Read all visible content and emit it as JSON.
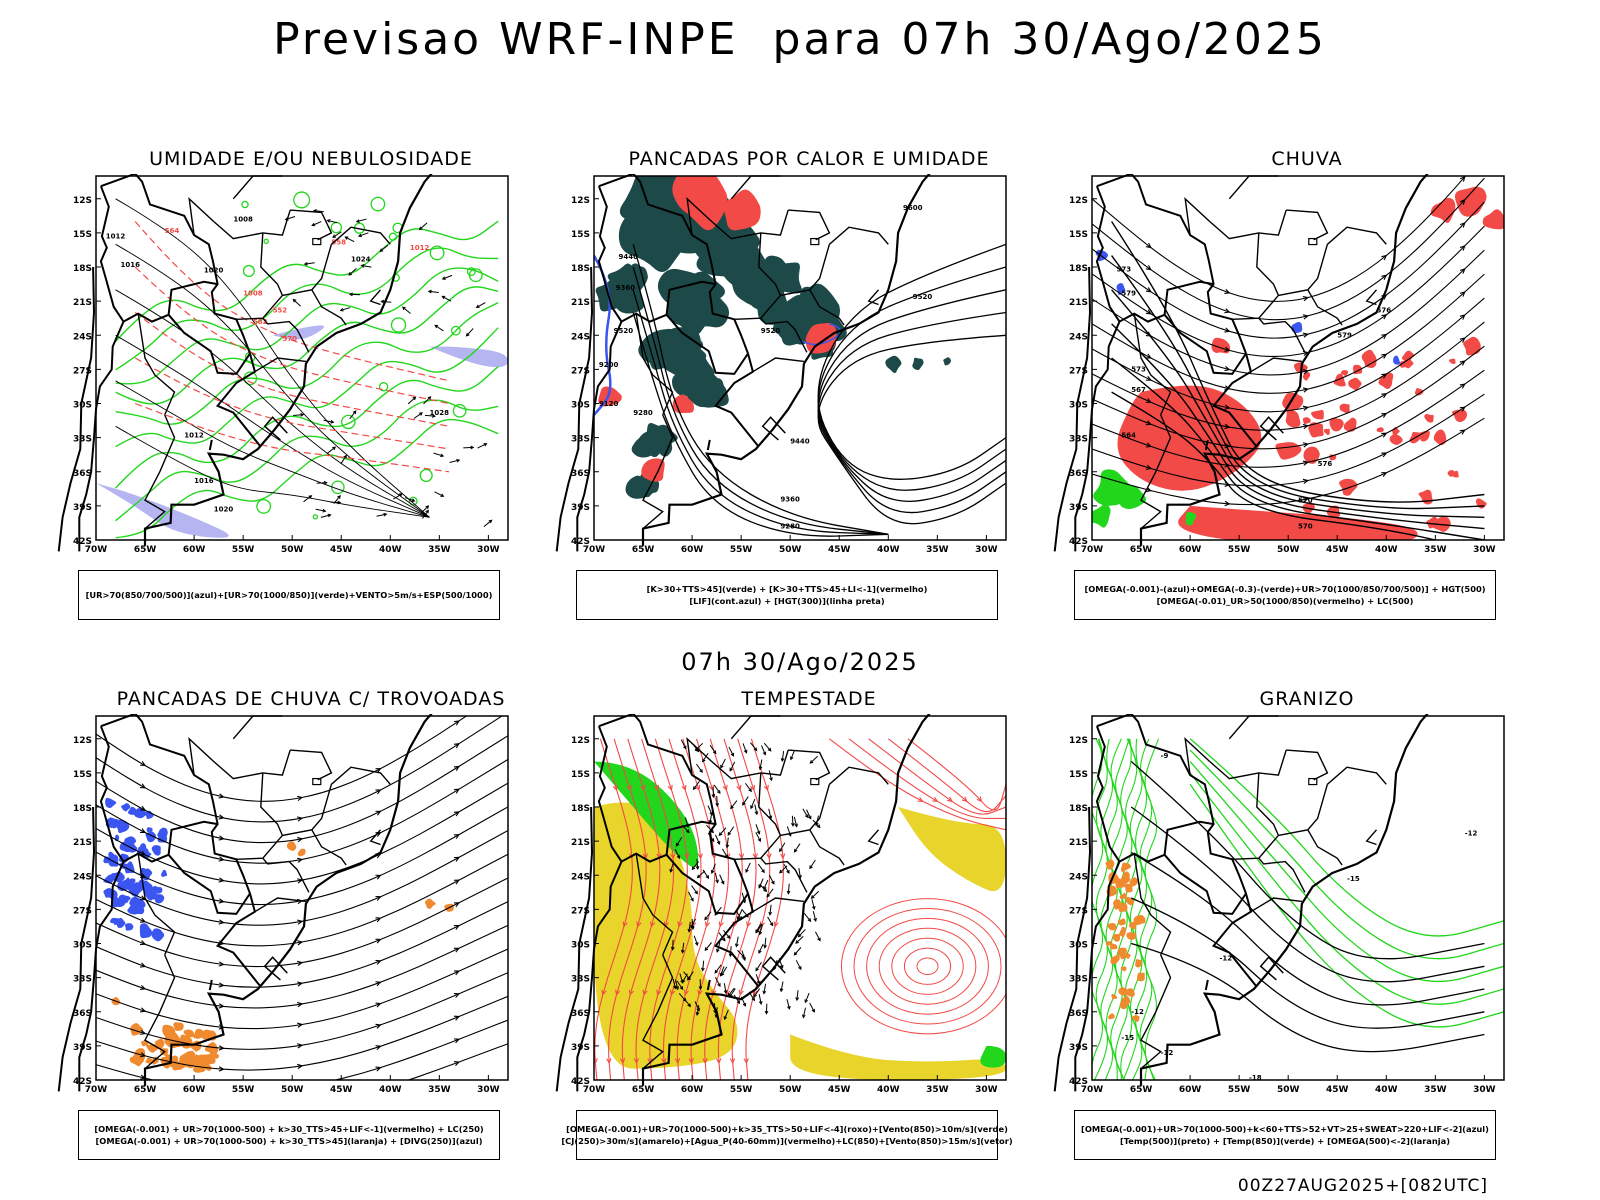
{
  "title": "Previsao WRF-INPE  para 07h 30/Ago/2025",
  "mid_title": "07h 30/Ago/2025",
  "footer": "00Z27AUG2025+[082UTC]",
  "axes": {
    "lat_labels": [
      "12S",
      "15S",
      "18S",
      "21S",
      "24S",
      "27S",
      "30S",
      "33S",
      "36S",
      "39S",
      "42S"
    ],
    "lon_labels": [
      "70W",
      "65W",
      "60W",
      "55W",
      "50W",
      "45W",
      "40W",
      "35W",
      "30W"
    ]
  },
  "colors": {
    "green": "#22d61c",
    "red": "#f24a46",
    "blue": "#3b55f0",
    "lavender": "#a8a8f0",
    "dark_teal": "#1d4a48",
    "yellow": "#e8d42a",
    "orange": "#f08a2e"
  },
  "panels": [
    {
      "id": "umidade",
      "title": "UMIDADE E/OU NEBULOSIDADE",
      "legend": [
        "[UR>70(850/700/500)](azul)+[UR>70(1000/850)](verde)+VENTO>5m/s+ESP(500/1000)"
      ],
      "contour_labels": [
        "1008",
        "1012",
        "1016",
        "1020",
        "1024",
        "1028",
        "1012",
        "1016",
        "1020",
        "552",
        "570",
        "582",
        "558",
        "564",
        "1008",
        "1012"
      ]
    },
    {
      "id": "pancadas-calor",
      "title": "PANCADAS POR CALOR E UMIDADE",
      "legend": [
        "[K>30+TTS>45](verde) + [K>30+TTS>45+LI<-1](vermelho)",
        "[LIF](cont.azul) + [HGT(300)](linha preta)"
      ],
      "contour_labels": [
        "9600",
        "9520",
        "9440",
        "9360",
        "9280",
        "9200",
        "9120",
        "9280",
        "9520",
        "9440",
        "9360",
        "9520"
      ]
    },
    {
      "id": "chuva",
      "title": "CHUVA",
      "legend": [
        "[OMEGA(-0.001)-(azul)+OMEGA(-0.3)-(verde)+UR>70(1000/850/700/500)] + HGT(500)",
        "[OMEGA(-0.01)_UR>50(1000/850)(vermelho) + LC(500)"
      ],
      "contour_labels": [
        "579",
        "576",
        "573",
        "570",
        "567",
        "564",
        "576",
        "579",
        "573",
        "570"
      ]
    },
    {
      "id": "trovoadas",
      "title": "PANCADAS DE CHUVA C/ TROVOADAS",
      "legend": [
        "[OMEGA(-0.001) + UR>70(1000-500) + k>30_TTS>45+LIF<-1](vermelho) + LC(250)",
        "[OMEGA(-0.001) + UR>70(1000-500) + k>30_TTS>45](laranja) + [DIVG(250)](azul)"
      ]
    },
    {
      "id": "tempestade",
      "title": "TEMPESTADE",
      "legend": [
        "[OMEGA(-0.001)+UR>70(1000-500)+k>35_TTS>50+LIF<-4](roxo)+[Vento(850)>10m/s](verde)",
        "[CJ(250)>30m/s](amarelo)+[Agua_P(40-60mm)](vermelho)+LC(850)+[Vento(850)>15m/s](vetor)"
      ]
    },
    {
      "id": "granizo",
      "title": "GRANIZO",
      "legend": [
        "[OMEGA(-0.001)+UR>70(1000-500)+k<60+TTS>52+VT>25+SWEAT>220+LIF<-2](azul)",
        "[Temp(500)](preto) + [Temp(850)](verde) + [OMEGA(500)<-2](laranja)"
      ],
      "contour_labels": [
        "-9",
        "-12",
        "-12",
        "-15",
        "-12",
        "-18",
        "-15",
        "-12"
      ]
    }
  ]
}
